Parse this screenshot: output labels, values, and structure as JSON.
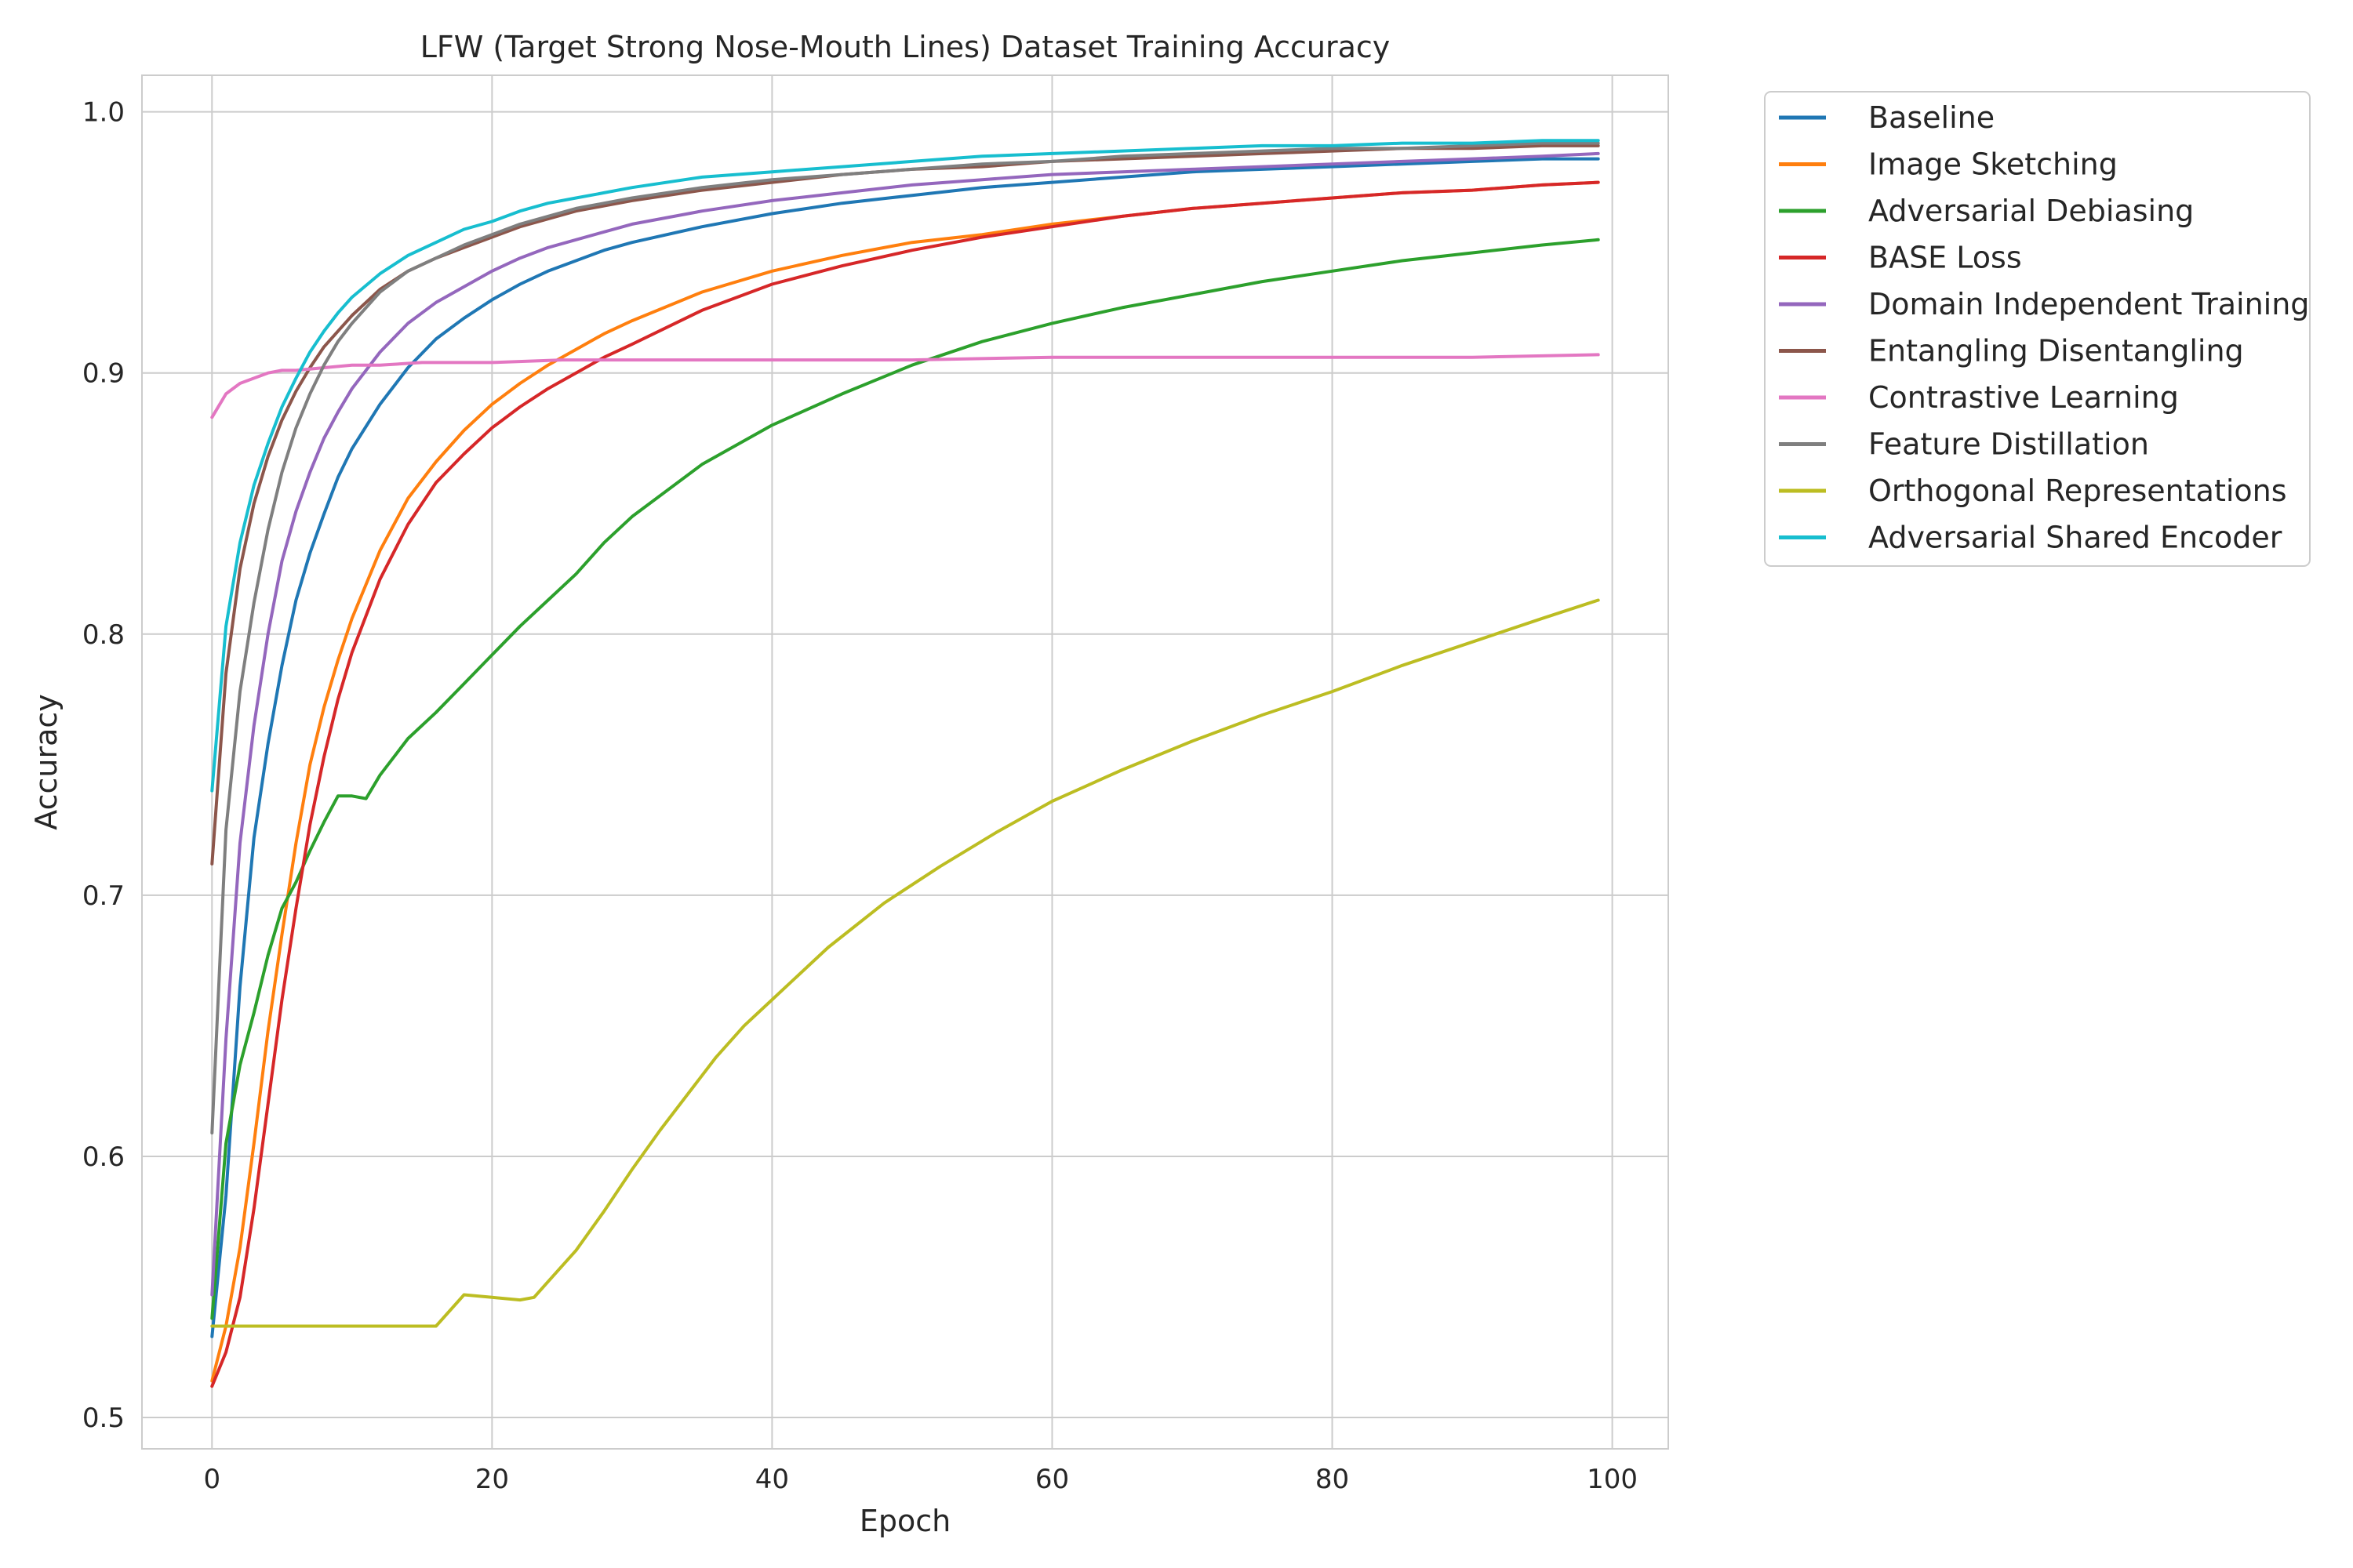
{
  "chart_data": {
    "type": "line",
    "title": "LFW (Target Strong Nose-Mouth Lines) Dataset Training Accuracy",
    "xlabel": "Epoch",
    "ylabel": "Accuracy",
    "xlim": [
      -5,
      104
    ],
    "ylim": [
      0.488,
      1.014
    ],
    "xticks": [
      0,
      20,
      40,
      60,
      80,
      100
    ],
    "yticks": [
      0.5,
      0.6,
      0.7,
      0.8,
      0.9,
      1.0
    ],
    "xtick_labels": [
      "0",
      "20",
      "40",
      "60",
      "80",
      "100"
    ],
    "ytick_labels": [
      "0.5",
      "0.6",
      "0.7",
      "0.8",
      "0.9",
      "1.0"
    ],
    "grid": true,
    "legend_position": "outside-top-right",
    "series": [
      {
        "name": "Baseline",
        "color": "#1f77b4",
        "x": [
          0,
          1,
          2,
          3,
          4,
          5,
          6,
          7,
          8,
          9,
          10,
          12,
          14,
          16,
          18,
          20,
          22,
          24,
          26,
          28,
          30,
          35,
          40,
          45,
          50,
          55,
          60,
          65,
          70,
          75,
          80,
          85,
          90,
          95,
          99
        ],
        "y": [
          0.531,
          0.585,
          0.665,
          0.722,
          0.758,
          0.788,
          0.813,
          0.831,
          0.846,
          0.86,
          0.871,
          0.888,
          0.902,
          0.913,
          0.921,
          0.928,
          0.934,
          0.939,
          0.943,
          0.947,
          0.95,
          0.956,
          0.961,
          0.965,
          0.968,
          0.971,
          0.973,
          0.975,
          0.977,
          0.978,
          0.979,
          0.98,
          0.981,
          0.982,
          0.982
        ]
      },
      {
        "name": "Image Sketching",
        "color": "#ff7f0e",
        "x": [
          0,
          1,
          2,
          3,
          4,
          5,
          6,
          7,
          8,
          9,
          10,
          12,
          14,
          16,
          18,
          20,
          22,
          24,
          26,
          28,
          30,
          35,
          40,
          45,
          50,
          55,
          60,
          65,
          70,
          75,
          80,
          85,
          90,
          95,
          99
        ],
        "y": [
          0.514,
          0.535,
          0.565,
          0.605,
          0.648,
          0.685,
          0.72,
          0.75,
          0.772,
          0.79,
          0.806,
          0.832,
          0.852,
          0.866,
          0.878,
          0.888,
          0.896,
          0.903,
          0.909,
          0.915,
          0.92,
          0.931,
          0.939,
          0.945,
          0.95,
          0.953,
          0.957,
          0.96,
          0.963,
          0.965,
          0.967,
          0.969,
          0.97,
          0.972,
          0.973
        ]
      },
      {
        "name": "Adversarial Debiasing",
        "color": "#2ca02c",
        "x": [
          0,
          1,
          2,
          3,
          4,
          5,
          6,
          7,
          8,
          9,
          10,
          11,
          12,
          13,
          14,
          16,
          18,
          20,
          22,
          24,
          26,
          28,
          30,
          35,
          40,
          45,
          50,
          55,
          60,
          65,
          70,
          75,
          80,
          85,
          90,
          95,
          99
        ],
        "y": [
          0.538,
          0.605,
          0.635,
          0.655,
          0.677,
          0.695,
          0.705,
          0.717,
          0.728,
          0.738,
          0.738,
          0.737,
          0.746,
          0.753,
          0.76,
          0.77,
          0.781,
          0.792,
          0.803,
          0.813,
          0.823,
          0.835,
          0.845,
          0.865,
          0.88,
          0.892,
          0.903,
          0.912,
          0.919,
          0.925,
          0.93,
          0.935,
          0.939,
          0.943,
          0.946,
          0.949,
          0.951
        ]
      },
      {
        "name": "BASE Loss",
        "color": "#d62728",
        "x": [
          0,
          1,
          2,
          3,
          4,
          5,
          6,
          7,
          8,
          9,
          10,
          12,
          14,
          16,
          18,
          20,
          22,
          24,
          26,
          28,
          30,
          35,
          40,
          45,
          50,
          55,
          60,
          65,
          70,
          75,
          80,
          85,
          90,
          95,
          99
        ],
        "y": [
          0.512,
          0.525,
          0.546,
          0.58,
          0.62,
          0.66,
          0.695,
          0.727,
          0.753,
          0.775,
          0.793,
          0.821,
          0.842,
          0.858,
          0.869,
          0.879,
          0.887,
          0.894,
          0.9,
          0.906,
          0.911,
          0.924,
          0.934,
          0.941,
          0.947,
          0.952,
          0.956,
          0.96,
          0.963,
          0.965,
          0.967,
          0.969,
          0.97,
          0.972,
          0.973
        ]
      },
      {
        "name": "Domain Independent Training",
        "color": "#9467bd",
        "x": [
          0,
          1,
          2,
          3,
          4,
          5,
          6,
          7,
          8,
          9,
          10,
          12,
          14,
          16,
          18,
          20,
          22,
          24,
          26,
          28,
          30,
          35,
          40,
          45,
          50,
          55,
          60,
          65,
          70,
          75,
          80,
          85,
          90,
          95,
          99
        ],
        "y": [
          0.547,
          0.645,
          0.72,
          0.765,
          0.8,
          0.828,
          0.847,
          0.862,
          0.875,
          0.885,
          0.894,
          0.908,
          0.919,
          0.927,
          0.933,
          0.939,
          0.944,
          0.948,
          0.951,
          0.954,
          0.957,
          0.962,
          0.966,
          0.969,
          0.972,
          0.974,
          0.976,
          0.977,
          0.978,
          0.979,
          0.98,
          0.981,
          0.982,
          0.983,
          0.984
        ]
      },
      {
        "name": "Entangling Disentangling",
        "color": "#8c564b",
        "x": [
          0,
          1,
          2,
          3,
          4,
          5,
          6,
          7,
          8,
          9,
          10,
          12,
          14,
          16,
          18,
          20,
          22,
          24,
          26,
          28,
          30,
          35,
          40,
          45,
          50,
          55,
          60,
          65,
          70,
          75,
          80,
          85,
          90,
          95,
          99
        ],
        "y": [
          0.712,
          0.785,
          0.825,
          0.85,
          0.868,
          0.882,
          0.893,
          0.902,
          0.91,
          0.916,
          0.922,
          0.932,
          0.939,
          0.944,
          0.948,
          0.952,
          0.956,
          0.959,
          0.962,
          0.964,
          0.966,
          0.97,
          0.973,
          0.976,
          0.978,
          0.979,
          0.981,
          0.982,
          0.983,
          0.984,
          0.985,
          0.986,
          0.986,
          0.987,
          0.987
        ]
      },
      {
        "name": "Contrastive Learning",
        "color": "#e377c2",
        "x": [
          0,
          1,
          2,
          3,
          4,
          5,
          6,
          8,
          10,
          12,
          15,
          20,
          25,
          30,
          40,
          50,
          60,
          70,
          80,
          90,
          99
        ],
        "y": [
          0.883,
          0.892,
          0.896,
          0.898,
          0.9,
          0.901,
          0.901,
          0.902,
          0.903,
          0.903,
          0.904,
          0.904,
          0.905,
          0.905,
          0.905,
          0.905,
          0.906,
          0.906,
          0.906,
          0.906,
          0.907
        ]
      },
      {
        "name": "Feature Distillation",
        "color": "#7f7f7f",
        "x": [
          0,
          1,
          2,
          3,
          4,
          5,
          6,
          7,
          8,
          9,
          10,
          12,
          14,
          16,
          18,
          20,
          22,
          24,
          26,
          28,
          30,
          35,
          40,
          45,
          50,
          55,
          60,
          65,
          70,
          75,
          80,
          85,
          90,
          95,
          99
        ],
        "y": [
          0.609,
          0.725,
          0.778,
          0.812,
          0.84,
          0.862,
          0.879,
          0.892,
          0.903,
          0.912,
          0.919,
          0.931,
          0.939,
          0.944,
          0.949,
          0.953,
          0.957,
          0.96,
          0.963,
          0.965,
          0.967,
          0.971,
          0.974,
          0.976,
          0.978,
          0.98,
          0.981,
          0.983,
          0.984,
          0.985,
          0.986,
          0.986,
          0.987,
          0.988,
          0.988
        ]
      },
      {
        "name": "Orthogonal Representations",
        "color": "#bcbd22",
        "x": [
          0,
          2,
          4,
          6,
          8,
          10,
          12,
          14,
          16,
          18,
          20,
          22,
          23,
          24,
          26,
          28,
          30,
          32,
          34,
          36,
          38,
          40,
          44,
          48,
          52,
          56,
          60,
          65,
          70,
          75,
          80,
          85,
          90,
          95,
          99
        ],
        "y": [
          0.535,
          0.535,
          0.535,
          0.535,
          0.535,
          0.535,
          0.535,
          0.535,
          0.535,
          0.547,
          0.546,
          0.545,
          0.546,
          0.552,
          0.564,
          0.579,
          0.595,
          0.61,
          0.624,
          0.638,
          0.65,
          0.66,
          0.68,
          0.697,
          0.711,
          0.724,
          0.736,
          0.748,
          0.759,
          0.769,
          0.778,
          0.788,
          0.797,
          0.806,
          0.813
        ]
      },
      {
        "name": "Adversarial Shared Encoder",
        "color": "#17becf",
        "x": [
          0,
          1,
          2,
          3,
          4,
          5,
          6,
          7,
          8,
          9,
          10,
          12,
          14,
          16,
          18,
          20,
          22,
          24,
          26,
          28,
          30,
          35,
          40,
          45,
          50,
          55,
          60,
          65,
          70,
          75,
          80,
          85,
          90,
          95,
          99
        ],
        "y": [
          0.74,
          0.803,
          0.835,
          0.857,
          0.873,
          0.887,
          0.898,
          0.908,
          0.916,
          0.923,
          0.929,
          0.938,
          0.945,
          0.95,
          0.955,
          0.958,
          0.962,
          0.965,
          0.967,
          0.969,
          0.971,
          0.975,
          0.977,
          0.979,
          0.981,
          0.983,
          0.984,
          0.985,
          0.986,
          0.987,
          0.987,
          0.988,
          0.988,
          0.989,
          0.989
        ]
      }
    ]
  }
}
